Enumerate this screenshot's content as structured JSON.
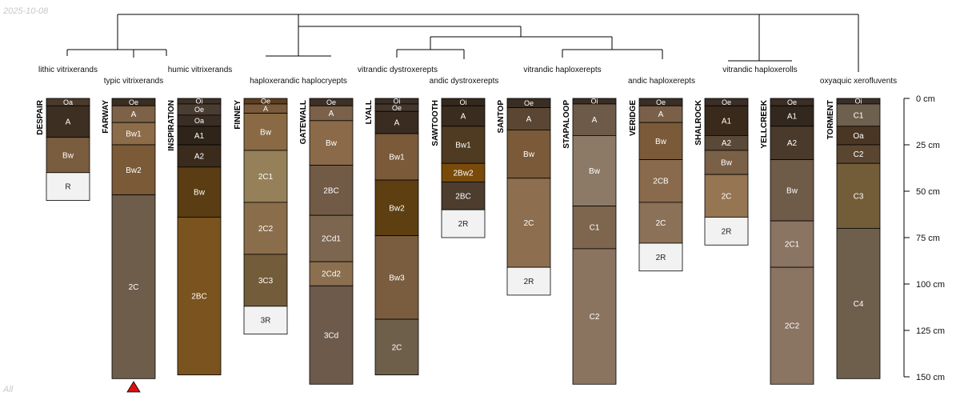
{
  "date_stamp": "2025-10-08",
  "corner_note": "All",
  "colors": {
    "line": "#000000",
    "marker": "#e01010",
    "light_text": "#ffffff",
    "dark_text": "#222222"
  },
  "chart_data": {
    "type": "soil-profile-dendrogram",
    "depth_axis": {
      "unit": "cm",
      "range": [
        0,
        150
      ],
      "ticks": [
        0,
        25,
        50,
        75,
        100,
        125,
        150
      ],
      "tick_labels": [
        "0 cm",
        "25 cm",
        "50 cm",
        "75 cm",
        "100 cm",
        "125 cm",
        "150 cm"
      ]
    },
    "truncated_marker": {
      "profile": "FARWAY",
      "shape": "triangle"
    },
    "taxa": [
      {
        "label": "lithic vitrixerands"
      },
      {
        "label": "typic vitrixerands"
      },
      {
        "label": "humic vitrixerands"
      },
      {
        "label": "haploxerandic haplocryepts"
      },
      {
        "label": "vitrandic dystroxerepts"
      },
      {
        "label": "andic dystroxerepts"
      },
      {
        "label": "vitrandic haploxerepts"
      },
      {
        "label": "andic haploxerepts"
      },
      {
        "label": "vitrandic haploxerolls"
      },
      {
        "label": "oxyaquic xerofluvents"
      }
    ],
    "profiles": [
      {
        "name": "DESPAIR",
        "horizons": [
          {
            "name": "Oa",
            "top": 0,
            "bottom": 4,
            "color": "#4a3a2c"
          },
          {
            "name": "A",
            "top": 4,
            "bottom": 21,
            "color": "#3d2f22"
          },
          {
            "name": "Bw",
            "top": 21,
            "bottom": 40,
            "color": "#7a5d3e"
          },
          {
            "name": "R",
            "top": 40,
            "bottom": 55,
            "color": "#f2f2f2"
          }
        ]
      },
      {
        "name": "FARWAY",
        "horizons": [
          {
            "name": "Oe",
            "top": 0,
            "bottom": 4,
            "color": "#3a2d22"
          },
          {
            "name": "A",
            "top": 4,
            "bottom": 13,
            "color": "#7d6248"
          },
          {
            "name": "Bw1",
            "top": 13,
            "bottom": 25,
            "color": "#8d6c4a"
          },
          {
            "name": "Bw2",
            "top": 25,
            "bottom": 52,
            "color": "#7b5a38"
          },
          {
            "name": "2C",
            "top": 52,
            "bottom": 151,
            "color": "#6e5d4b"
          }
        ]
      },
      {
        "name": "INSPIRATION",
        "horizons": [
          {
            "name": "Oi",
            "top": 0,
            "bottom": 3,
            "color": "#3c3128"
          },
          {
            "name": "Oe",
            "top": 3,
            "bottom": 9,
            "color": "#4a3d32"
          },
          {
            "name": "Oa",
            "top": 9,
            "bottom": 15,
            "color": "#3a2e24"
          },
          {
            "name": "A1",
            "top": 15,
            "bottom": 25,
            "color": "#2f2419"
          },
          {
            "name": "A2",
            "top": 25,
            "bottom": 37,
            "color": "#3a2b1d"
          },
          {
            "name": "Bw",
            "top": 37,
            "bottom": 64,
            "color": "#5a3d12"
          },
          {
            "name": "2BC",
            "top": 64,
            "bottom": 149,
            "color": "#7a531f"
          }
        ]
      },
      {
        "name": "FINNEY",
        "horizons": [
          {
            "name": "Oe",
            "top": 0,
            "bottom": 3,
            "color": "#5c3d1e"
          },
          {
            "name": "A",
            "top": 3,
            "bottom": 8,
            "color": "#7a5a3c"
          },
          {
            "name": "Bw",
            "top": 8,
            "bottom": 28,
            "color": "#8a6a45"
          },
          {
            "name": "2C1",
            "top": 28,
            "bottom": 56,
            "color": "#958059"
          },
          {
            "name": "2C2",
            "top": 56,
            "bottom": 84,
            "color": "#8a6d4a"
          },
          {
            "name": "3C3",
            "top": 84,
            "bottom": 112,
            "color": "#735c3a"
          },
          {
            "name": "3R",
            "top": 112,
            "bottom": 127,
            "color": "#f2f2f2"
          }
        ]
      },
      {
        "name": "GATEWALL",
        "horizons": [
          {
            "name": "Oe",
            "top": 0,
            "bottom": 4,
            "color": "#3d3027"
          },
          {
            "name": "A",
            "top": 4,
            "bottom": 12,
            "color": "#7b6149"
          },
          {
            "name": "Bw",
            "top": 12,
            "bottom": 36,
            "color": "#8a6a48"
          },
          {
            "name": "2BC",
            "top": 36,
            "bottom": 63,
            "color": "#715a46"
          },
          {
            "name": "2Cd1",
            "top": 63,
            "bottom": 88,
            "color": "#7c6650"
          },
          {
            "name": "2Cd2",
            "top": 88,
            "bottom": 101,
            "color": "#8b6f4e"
          },
          {
            "name": "3Cd",
            "top": 101,
            "bottom": 154,
            "color": "#6d5a4b"
          }
        ]
      },
      {
        "name": "LYALL",
        "horizons": [
          {
            "name": "Oi",
            "top": 0,
            "bottom": 3,
            "color": "#3a2f27"
          },
          {
            "name": "Oe",
            "top": 3,
            "bottom": 7,
            "color": "#43362b"
          },
          {
            "name": "A",
            "top": 7,
            "bottom": 19,
            "color": "#3a2c20"
          },
          {
            "name": "Bw1",
            "top": 19,
            "bottom": 44,
            "color": "#7b5a3a"
          },
          {
            "name": "Bw2",
            "top": 44,
            "bottom": 74,
            "color": "#5e3f12"
          },
          {
            "name": "Bw3",
            "top": 74,
            "bottom": 119,
            "color": "#7a5d3e"
          },
          {
            "name": "2C",
            "top": 119,
            "bottom": 149,
            "color": "#6e5f4a"
          }
        ]
      },
      {
        "name": "SAWTOOTH",
        "horizons": [
          {
            "name": "Oi",
            "top": 0,
            "bottom": 4,
            "color": "#35291e"
          },
          {
            "name": "A",
            "top": 4,
            "bottom": 15,
            "color": "#3a2c1f"
          },
          {
            "name": "Bw1",
            "top": 15,
            "bottom": 35,
            "color": "#4f3a22"
          },
          {
            "name": "2Bw2",
            "top": 35,
            "bottom": 45,
            "color": "#7a4a0a"
          },
          {
            "name": "2BC",
            "top": 45,
            "bottom": 60,
            "color": "#4c3d2f"
          },
          {
            "name": "2R",
            "top": 60,
            "bottom": 75,
            "color": "#f2f2f2"
          }
        ]
      },
      {
        "name": "SANTOP",
        "horizons": [
          {
            "name": "Oe",
            "top": 0,
            "bottom": 5,
            "color": "#3a2e24"
          },
          {
            "name": "A",
            "top": 5,
            "bottom": 17,
            "color": "#5a4632"
          },
          {
            "name": "Bw",
            "top": 17,
            "bottom": 43,
            "color": "#7a5a38"
          },
          {
            "name": "2C",
            "top": 43,
            "bottom": 91,
            "color": "#8d6e4e"
          },
          {
            "name": "2R",
            "top": 91,
            "bottom": 106,
            "color": "#f2f2f2"
          }
        ]
      },
      {
        "name": "STAPALOOP",
        "horizons": [
          {
            "name": "Oi",
            "top": 0,
            "bottom": 3,
            "color": "#3a2e24"
          },
          {
            "name": "A",
            "top": 3,
            "bottom": 20,
            "color": "#6e5a48"
          },
          {
            "name": "Bw",
            "top": 20,
            "bottom": 58,
            "color": "#8c7a66"
          },
          {
            "name": "C1",
            "top": 58,
            "bottom": 81,
            "color": "#7d654e"
          },
          {
            "name": "C2",
            "top": 81,
            "bottom": 154,
            "color": "#8a7460"
          }
        ]
      },
      {
        "name": "VERIDGE",
        "horizons": [
          {
            "name": "Oe",
            "top": 0,
            "bottom": 4,
            "color": "#3a2e25"
          },
          {
            "name": "A",
            "top": 4,
            "bottom": 13,
            "color": "#7a6048"
          },
          {
            "name": "Bw",
            "top": 13,
            "bottom": 33,
            "color": "#7a5a38"
          },
          {
            "name": "2CB",
            "top": 33,
            "bottom": 56,
            "color": "#8a6a4c"
          },
          {
            "name": "2C",
            "top": 56,
            "bottom": 78,
            "color": "#8a7158"
          },
          {
            "name": "2R",
            "top": 78,
            "bottom": 93,
            "color": "#f2f2f2"
          }
        ]
      },
      {
        "name": "SHALROCK",
        "horizons": [
          {
            "name": "Oe",
            "top": 0,
            "bottom": 4,
            "color": "#3a2e25"
          },
          {
            "name": "A1",
            "top": 4,
            "bottom": 20,
            "color": "#3a2a1c"
          },
          {
            "name": "A2",
            "top": 20,
            "bottom": 28,
            "color": "#5a4838"
          },
          {
            "name": "Bw",
            "top": 28,
            "bottom": 41,
            "color": "#7a6046"
          },
          {
            "name": "2C",
            "top": 41,
            "bottom": 64,
            "color": "#957552"
          },
          {
            "name": "2R",
            "top": 64,
            "bottom": 79,
            "color": "#f2f2f2"
          }
        ]
      },
      {
        "name": "YELLCREEK",
        "horizons": [
          {
            "name": "Oe",
            "top": 0,
            "bottom": 4,
            "color": "#3a2e25"
          },
          {
            "name": "A1",
            "top": 4,
            "bottom": 15,
            "color": "#33281e"
          },
          {
            "name": "A2",
            "top": 15,
            "bottom": 33,
            "color": "#4a3a2c"
          },
          {
            "name": "Bw",
            "top": 33,
            "bottom": 66,
            "color": "#6e5b48"
          },
          {
            "name": "2C1",
            "top": 66,
            "bottom": 91,
            "color": "#8a7462"
          },
          {
            "name": "2C2",
            "top": 91,
            "bottom": 154,
            "color": "#8a7462"
          }
        ]
      },
      {
        "name": "TORMENT",
        "horizons": [
          {
            "name": "Oi",
            "top": 0,
            "bottom": 3,
            "color": "#3a2f28"
          },
          {
            "name": "C1",
            "top": 3,
            "bottom": 15,
            "color": "#6e604e"
          },
          {
            "name": "Oa",
            "top": 15,
            "bottom": 25,
            "color": "#4a3625"
          },
          {
            "name": "C2",
            "top": 25,
            "bottom": 35,
            "color": "#5a4630"
          },
          {
            "name": "C3",
            "top": 35,
            "bottom": 70,
            "color": "#735c38"
          },
          {
            "name": "C4",
            "top": 70,
            "bottom": 151,
            "color": "#6d5f4c"
          }
        ]
      }
    ]
  }
}
